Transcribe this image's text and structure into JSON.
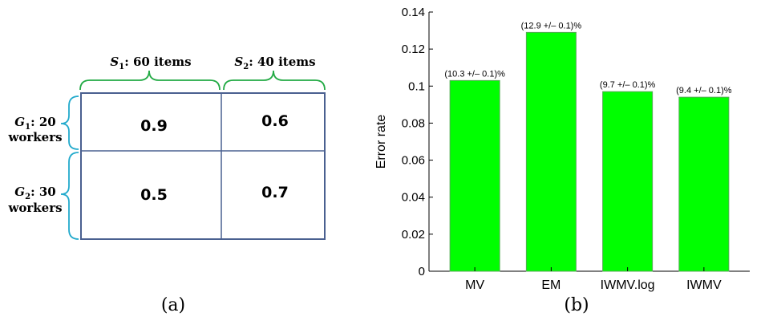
{
  "panel_a": {
    "caption": "(a)",
    "col_headers": [
      {
        "sym": "S",
        "sub": "1",
        "rest": ": 60 items"
      },
      {
        "sym": "S",
        "sub": "2",
        "rest": ": 40 items"
      }
    ],
    "row_headers": [
      {
        "sym": "G",
        "sub": "1",
        "rest": ": 20",
        "line2": "workers"
      },
      {
        "sym": "G",
        "sub": "2",
        "rest": ": 30",
        "line2": "workers"
      }
    ],
    "cells": [
      [
        "0.9",
        "0.6"
      ],
      [
        "0.5",
        "0.7"
      ]
    ],
    "colors": {
      "grid": "#4a6090",
      "brace_top": "#22aa44",
      "brace_left": "#22aacc"
    }
  },
  "panel_b": {
    "caption": "(b)",
    "chart_data": {
      "type": "bar",
      "categories": [
        "MV",
        "EM",
        "IWMV.log",
        "IWMV"
      ],
      "values": [
        0.103,
        0.129,
        0.097,
        0.094
      ],
      "data_labels": [
        "(10.3 +/– 0.1)%",
        "(12.9 +/– 0.1)%",
        "(9.7 +/– 0.1)%",
        "(9.4 +/– 0.1)%"
      ],
      "ylabel": "Error rate",
      "ylim": [
        0,
        0.14
      ],
      "yticks": [
        0,
        0.02,
        0.04,
        0.06,
        0.08,
        0.1,
        0.12,
        0.14
      ],
      "ytick_labels": [
        "0",
        "0.02",
        "0.04",
        "0.06",
        "0.08",
        "0.1",
        "0.12",
        "0.14"
      ],
      "bar_color": "#00ff00",
      "bar_edge_color": "#55aa55",
      "grid": false
    }
  }
}
